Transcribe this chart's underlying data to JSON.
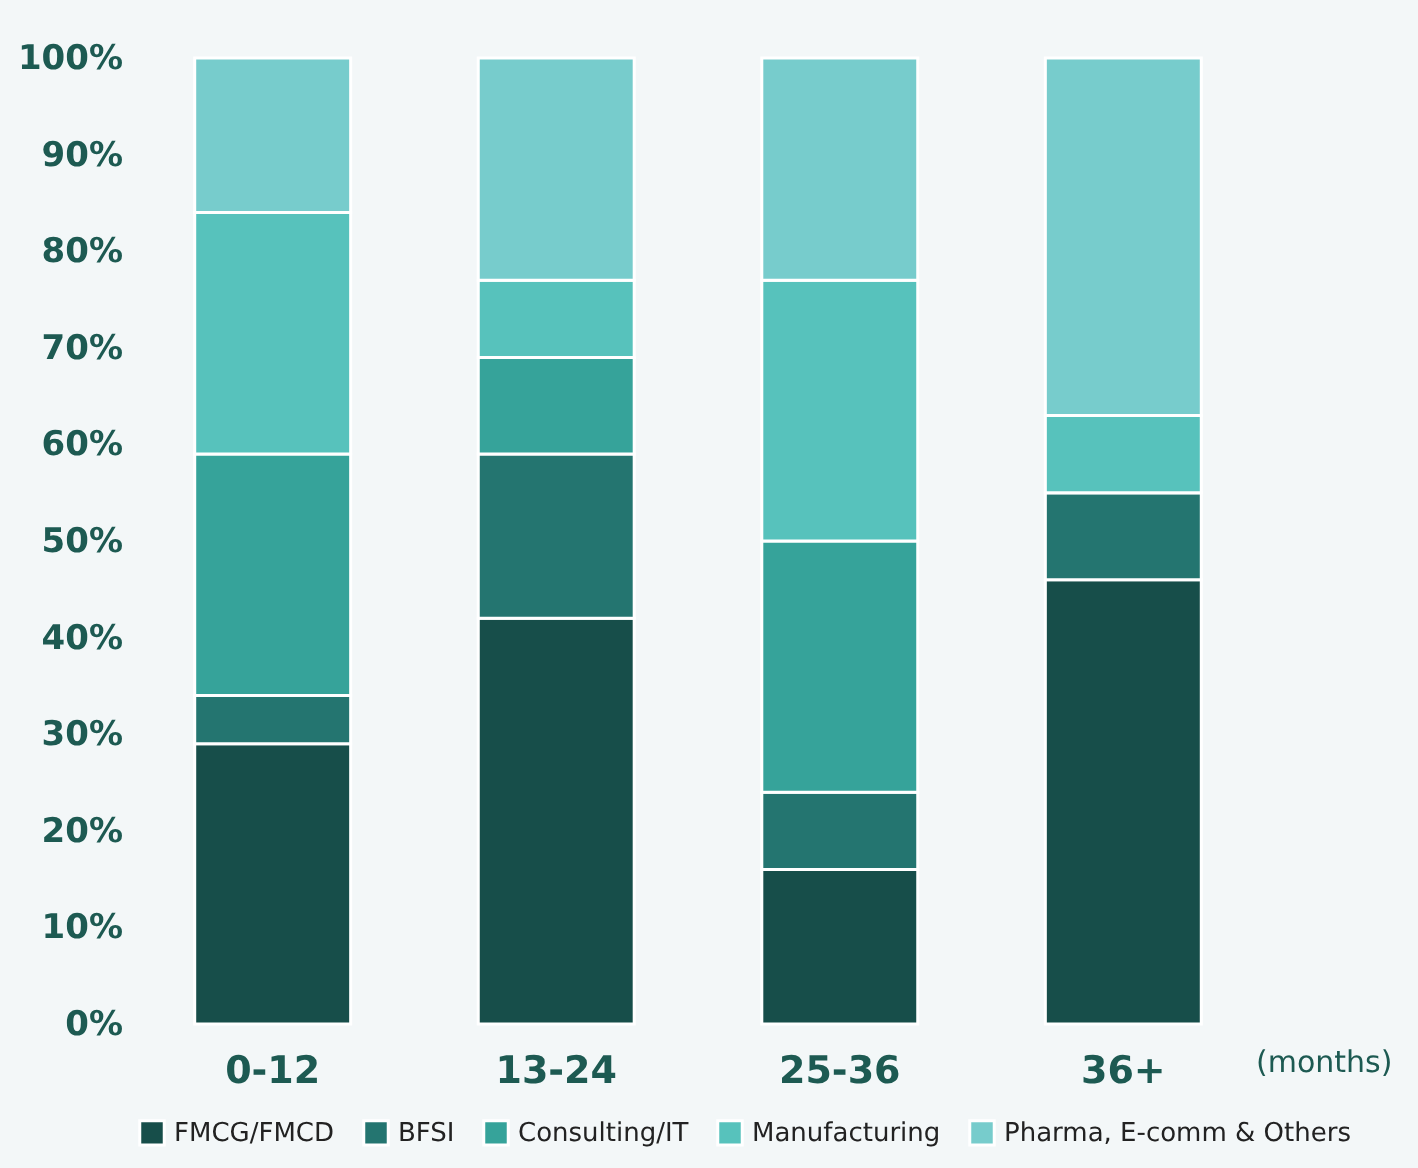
{
  "chart_data": {
    "type": "bar",
    "stacked": true,
    "categories": [
      "0-12",
      "13-24",
      "25-36",
      "36+"
    ],
    "series": [
      {
        "name": "FMCG/FMCD",
        "color": "#174e4a",
        "values": [
          29,
          42,
          16,
          46
        ]
      },
      {
        "name": "BFSI",
        "color": "#247570",
        "values": [
          5,
          17,
          8,
          9
        ]
      },
      {
        "name": "Consulting/IT",
        "color": "#36a39a",
        "values": [
          25,
          10,
          26,
          0
        ]
      },
      {
        "name": "Manufacturing",
        "color": "#57c2bc",
        "values": [
          25,
          8,
          27,
          8
        ]
      },
      {
        "name": "Pharma, E-comm & Others",
        "color": "#77cccc",
        "values": [
          16,
          23,
          23,
          37
        ]
      }
    ],
    "ylim": [
      0,
      100
    ],
    "yticks": [
      {
        "value": 0,
        "label": "0%"
      },
      {
        "value": 10,
        "label": "10%"
      },
      {
        "value": 20,
        "label": "20%"
      },
      {
        "value": 30,
        "label": "30%"
      },
      {
        "value": 40,
        "label": "40%"
      },
      {
        "value": 50,
        "label": "50%"
      },
      {
        "value": 60,
        "label": "60%"
      },
      {
        "value": 70,
        "label": "70%"
      },
      {
        "value": 80,
        "label": "80%"
      },
      {
        "value": 90,
        "label": "90%"
      },
      {
        "value": 100,
        "label": "100%"
      }
    ],
    "annotations": [
      "(months)"
    ],
    "legend": "bottom",
    "grid": false
  }
}
